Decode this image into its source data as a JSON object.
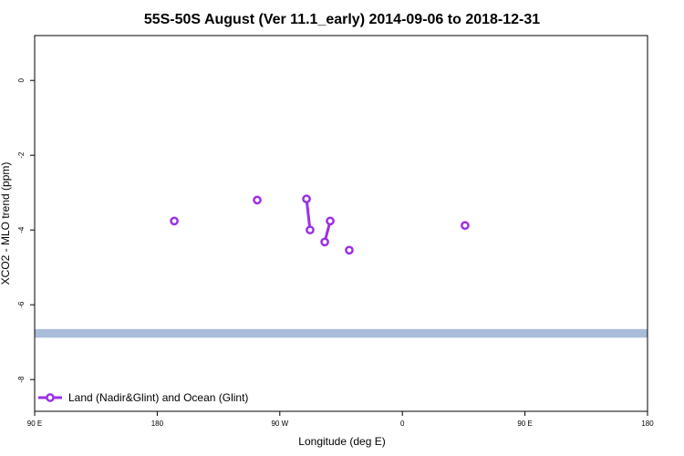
{
  "chart_data": {
    "type": "line",
    "title": "55S-50S August (Ver 11.1_early)   2014-09-06 to 2018-12-31",
    "x_label": "Longitude (deg E)",
    "y_label": "XCO2 - MLO trend (ppm)",
    "xlim": [
      90,
      540
    ],
    "ylim": [
      1.2,
      -8.85
    ],
    "xticks": [
      {
        "value": 90,
        "label": "90 E"
      },
      180,
      {
        "value": 270,
        "label": "90 W"
      },
      {
        "value": 360,
        "label": "0"
      },
      {
        "value": 450,
        "label": "90 E"
      },
      {
        "value": 540,
        "label": "180"
      }
    ],
    "yticks": [
      0,
      -2,
      -4,
      -6,
      -8
    ],
    "band": {
      "range": [
        -6.65,
        -6.88
      ],
      "color": "#a9bcd9"
    },
    "legend": "bottom-left",
    "series": [
      {
        "name": "Land (Nadir&Glint) and Ocean (Glint)",
        "color": "#9b30e8",
        "x": [
          192.5,
          null,
          253.4,
          null,
          289.6,
          292.2,
          null,
          303,
          307,
          null,
          321,
          null,
          406
        ],
        "values": [
          -3.76,
          null,
          -3.2,
          null,
          -3.17,
          -4.0,
          null,
          -4.32,
          -3.76,
          null,
          -4.54,
          null,
          -3.88
        ]
      }
    ]
  }
}
